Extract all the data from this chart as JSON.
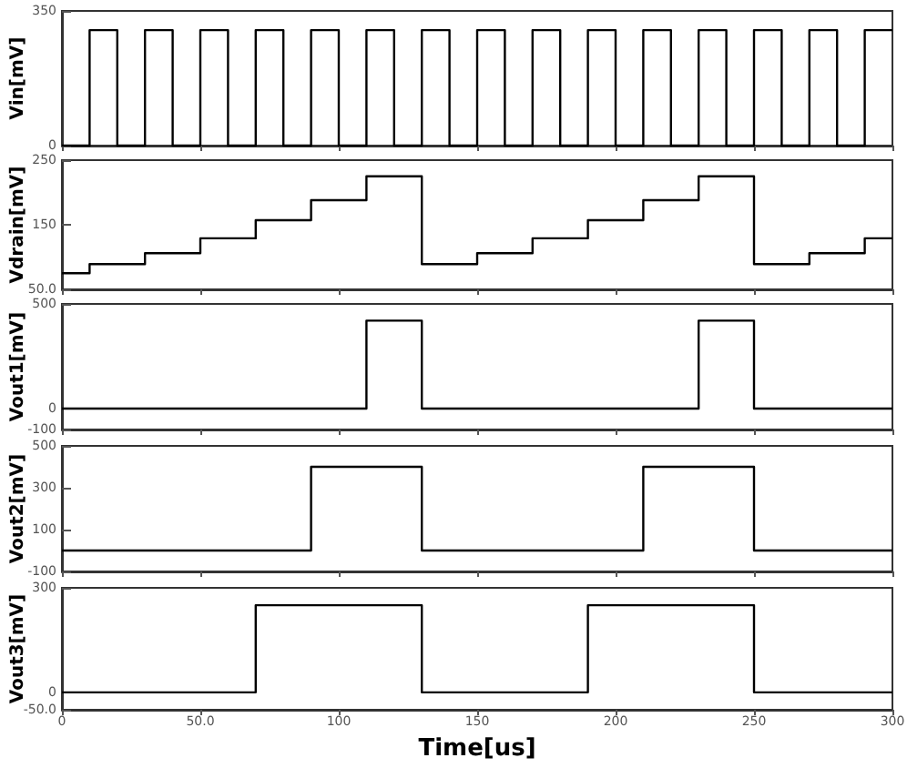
{
  "chart_data": [
    {
      "type": "step",
      "ylabel": "Vin[mV]",
      "x": [
        0,
        10,
        20,
        30,
        40,
        50,
        60,
        70,
        80,
        90,
        100,
        110,
        120,
        130,
        140,
        150,
        160,
        170,
        180,
        190,
        200,
        210,
        220,
        230,
        240,
        250,
        260,
        270,
        280,
        290,
        300
      ],
      "values": [
        0,
        300,
        0,
        300,
        0,
        300,
        0,
        300,
        0,
        300,
        0,
        300,
        0,
        300,
        0,
        300,
        0,
        300,
        0,
        300,
        0,
        300,
        0,
        300,
        0,
        300,
        0,
        300,
        0,
        300,
        300
      ],
      "color": "#000000",
      "xlim": [
        0,
        300
      ],
      "ylim": [
        0,
        350
      ],
      "yticks": [
        0,
        350
      ],
      "tick_labels": "y"
    },
    {
      "type": "step",
      "ylabel": "Vdrain[mV]",
      "x": [
        0,
        10,
        30,
        50,
        70,
        90,
        110,
        130,
        150,
        170,
        190,
        210,
        230,
        250,
        270,
        290,
        300
      ],
      "values": [
        75,
        89,
        106,
        129,
        157,
        188,
        225,
        89,
        106,
        129,
        157,
        188,
        225,
        89,
        106,
        129,
        129
      ],
      "color": "#000000",
      "xlim": [
        0,
        300
      ],
      "ylim": [
        50,
        250
      ],
      "yticks": [
        {
          "value": 50,
          "label": "50.0"
        },
        150,
        250
      ],
      "tick_labels": "y"
    },
    {
      "type": "step",
      "ylabel": "Vout1[mV]",
      "x": [
        0,
        110,
        130,
        230,
        250,
        300
      ],
      "values": [
        0,
        420,
        0,
        420,
        0,
        0
      ],
      "color": "#000000",
      "xlim": [
        0,
        300
      ],
      "ylim": [
        -100,
        500
      ],
      "yticks": [
        -100,
        0,
        500
      ],
      "tick_labels": "y"
    },
    {
      "type": "step",
      "ylabel": "Vout2[mV]",
      "x": [
        0,
        90,
        130,
        210,
        250,
        300
      ],
      "values": [
        0,
        400,
        0,
        400,
        0,
        0
      ],
      "color": "#000000",
      "xlim": [
        0,
        300
      ],
      "ylim": [
        -100,
        500
      ],
      "yticks": [
        -100,
        100,
        300,
        500
      ],
      "tick_labels": "y"
    },
    {
      "type": "step",
      "ylabel": "Vout3[mV]",
      "xlabel": "Time[us]",
      "x": [
        0,
        70,
        130,
        190,
        250,
        300
      ],
      "values": [
        0,
        250,
        0,
        250,
        0,
        0
      ],
      "color": "#000000",
      "xlim": [
        0,
        300
      ],
      "xticks": [
        0,
        {
          "value": 50,
          "label": "50.0"
        },
        100,
        150,
        200,
        250,
        300
      ],
      "ylim": [
        -50,
        300
      ],
      "yticks": [
        {
          "value": -50,
          "label": "-50.0"
        },
        0,
        300
      ]
    }
  ]
}
